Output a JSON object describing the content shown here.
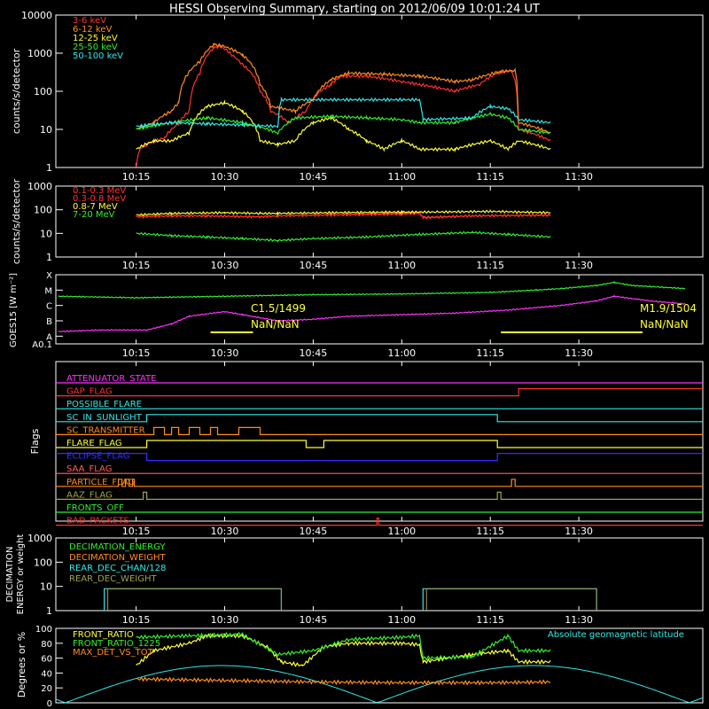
{
  "title": "HESSI Observing Summary, starting on 2012/06/09 10:01:24 UT",
  "time_ticks": [
    "10:15",
    "10:30",
    "10:45",
    "11:00",
    "11:15",
    "11:30"
  ],
  "colors": {
    "red": "#ff3030",
    "orange": "#ff8c1a",
    "yellow": "#ffff30",
    "green": "#30ee30",
    "cyan": "#30e8e8",
    "magenta": "#ff30ff",
    "blue": "#3030ff",
    "olive": "#a0a050",
    "pink": "#ff6060",
    "white": "#ffffff"
  },
  "chart_data": [
    {
      "type": "line",
      "ylabel": "counts/s/detector",
      "y_scale": "log",
      "ylim": [
        1,
        10000
      ],
      "yticks": [
        "1",
        "10",
        "100",
        "1000",
        "10000"
      ],
      "series": [
        {
          "name": "3-6 keV",
          "color": "red",
          "points": [
            [
              10.25,
              1
            ],
            [
              10.26,
              3
            ],
            [
              10.28,
              4
            ],
            [
              10.33,
              6
            ],
            [
              10.37,
              14
            ],
            [
              10.4,
              30
            ],
            [
              10.43,
              300
            ],
            [
              10.47,
              1400
            ],
            [
              10.49,
              1500
            ],
            [
              10.52,
              900
            ],
            [
              10.55,
              500
            ],
            [
              10.6,
              100
            ],
            [
              10.63,
              30
            ],
            [
              10.68,
              15
            ],
            [
              10.7,
              20
            ],
            [
              10.73,
              30
            ],
            [
              10.8,
              150
            ],
            [
              10.83,
              250
            ],
            [
              10.9,
              250
            ],
            [
              11.0,
              180
            ],
            [
              11.05,
              150
            ],
            [
              11.15,
              100
            ],
            [
              11.22,
              150
            ],
            [
              11.27,
              300
            ],
            [
              11.31,
              350
            ],
            [
              11.33,
              10
            ],
            [
              11.42,
              5
            ]
          ]
        },
        {
          "name": "6-12 keV",
          "color": "orange",
          "points": [
            [
              10.25,
              10
            ],
            [
              10.3,
              15
            ],
            [
              10.35,
              30
            ],
            [
              10.37,
              50
            ],
            [
              10.43,
              600
            ],
            [
              10.47,
              1700
            ],
            [
              10.5,
              1500
            ],
            [
              10.55,
              900
            ],
            [
              10.6,
              150
            ],
            [
              10.63,
              40
            ],
            [
              10.7,
              30
            ],
            [
              10.75,
              60
            ],
            [
              10.8,
              200
            ],
            [
              10.85,
              300
            ],
            [
              10.95,
              280
            ],
            [
              11.05,
              250
            ],
            [
              11.15,
              180
            ],
            [
              11.2,
              200
            ],
            [
              11.28,
              330
            ],
            [
              11.32,
              350
            ],
            [
              11.33,
              15
            ],
            [
              11.42,
              8
            ]
          ]
        },
        {
          "name": "12-25 keV",
          "color": "yellow",
          "points": [
            [
              10.25,
              3
            ],
            [
              10.3,
              5
            ],
            [
              10.35,
              5
            ],
            [
              10.4,
              8
            ],
            [
              10.45,
              40
            ],
            [
              10.5,
              50
            ],
            [
              10.55,
              30
            ],
            [
              10.6,
              5
            ],
            [
              10.65,
              4
            ],
            [
              10.7,
              5
            ],
            [
              10.75,
              15
            ],
            [
              10.8,
              20
            ],
            [
              10.85,
              10
            ],
            [
              10.9,
              5
            ],
            [
              10.95,
              3
            ],
            [
              11.0,
              5
            ],
            [
              11.05,
              3
            ],
            [
              11.15,
              3
            ],
            [
              11.25,
              5
            ],
            [
              11.3,
              3
            ],
            [
              11.33,
              5
            ],
            [
              11.42,
              3
            ]
          ]
        },
        {
          "name": "25-50 keV",
          "color": "green",
          "points": [
            [
              10.25,
              10
            ],
            [
              10.35,
              15
            ],
            [
              10.45,
              20
            ],
            [
              10.55,
              15
            ],
            [
              10.65,
              8
            ],
            [
              10.7,
              20
            ],
            [
              10.8,
              22
            ],
            [
              10.9,
              20
            ],
            [
              11.0,
              18
            ],
            [
              11.05,
              15
            ],
            [
              11.15,
              15
            ],
            [
              11.25,
              25
            ],
            [
              11.3,
              20
            ],
            [
              11.33,
              10
            ],
            [
              11.42,
              8
            ]
          ]
        },
        {
          "name": "50-100 keV",
          "color": "cyan",
          "points": [
            [
              10.25,
              12
            ],
            [
              10.35,
              15
            ],
            [
              10.45,
              14
            ],
            [
              10.55,
              13
            ],
            [
              10.65,
              12
            ],
            [
              10.66,
              60
            ],
            [
              11.05,
              60
            ],
            [
              11.06,
              18
            ],
            [
              11.2,
              20
            ],
            [
              11.25,
              40
            ],
            [
              11.3,
              35
            ],
            [
              11.33,
              18
            ],
            [
              11.42,
              15
            ]
          ]
        }
      ]
    },
    {
      "type": "line",
      "ylabel": "counts/s/detector",
      "y_scale": "log",
      "ylim": [
        1,
        1000
      ],
      "yticks": [
        "1",
        "10",
        "100",
        "1000"
      ],
      "series": [
        {
          "name": "0.1-0.3 MeV",
          "color": "red",
          "points": [
            [
              10.25,
              50
            ],
            [
              10.35,
              55
            ],
            [
              10.45,
              55
            ],
            [
              10.6,
              50
            ],
            [
              10.65,
              55
            ],
            [
              10.8,
              60
            ],
            [
              11.0,
              70
            ],
            [
              11.05,
              80
            ],
            [
              11.06,
              45
            ],
            [
              11.2,
              55
            ],
            [
              11.42,
              60
            ]
          ]
        },
        {
          "name": "0.3-0.8 MeV",
          "color": "red",
          "points": [
            [
              10.25,
              50
            ],
            [
              10.35,
              55
            ],
            [
              10.45,
              55
            ],
            [
              10.6,
              50
            ],
            [
              10.65,
              55
            ],
            [
              10.8,
              60
            ],
            [
              11.0,
              65
            ],
            [
              11.05,
              70
            ],
            [
              11.06,
              48
            ],
            [
              11.2,
              55
            ],
            [
              11.42,
              58
            ]
          ]
        },
        {
          "name": "0.8-7 MeV",
          "color": "yellow",
          "points": [
            [
              10.25,
              60
            ],
            [
              10.35,
              70
            ],
            [
              10.5,
              75
            ],
            [
              10.6,
              70
            ],
            [
              10.65,
              70
            ],
            [
              10.8,
              75
            ],
            [
              11.0,
              80
            ],
            [
              11.1,
              80
            ],
            [
              11.25,
              85
            ],
            [
              11.42,
              75
            ]
          ]
        },
        {
          "name": "7-20 MeV",
          "color": "green",
          "points": [
            [
              10.25,
              10
            ],
            [
              10.35,
              8
            ],
            [
              10.45,
              7
            ],
            [
              10.55,
              6
            ],
            [
              10.65,
              5
            ],
            [
              10.75,
              6
            ],
            [
              10.9,
              7
            ],
            [
              11.05,
              9
            ],
            [
              11.2,
              11
            ],
            [
              11.3,
              9
            ],
            [
              11.42,
              7
            ]
          ]
        }
      ]
    },
    {
      "type": "line",
      "ylabel": "GOES15 [W m⁻²]",
      "y_scale": "log",
      "yticks": [
        "A0.1",
        "A",
        "B",
        "C",
        "M",
        "X"
      ],
      "series": [
        {
          "color": "green",
          "points": [
            [
              10.03,
              4.6
            ],
            [
              10.25,
              4.5
            ],
            [
              10.5,
              4.6
            ],
            [
              10.75,
              4.7
            ],
            [
              11.0,
              4.75
            ],
            [
              11.25,
              4.85
            ],
            [
              11.38,
              5.0
            ],
            [
              11.45,
              5.1
            ],
            [
              11.55,
              5.3
            ],
            [
              11.6,
              5.5
            ],
            [
              11.65,
              5.3
            ],
            [
              11.8,
              5.1
            ]
          ]
        },
        {
          "color": "magenta",
          "points": [
            [
              10.03,
              2.3
            ],
            [
              10.15,
              2.4
            ],
            [
              10.28,
              2.4
            ],
            [
              10.35,
              2.8
            ],
            [
              10.4,
              3.3
            ],
            [
              10.5,
              3.6
            ],
            [
              10.55,
              3.4
            ],
            [
              10.65,
              3.0
            ],
            [
              10.75,
              3.1
            ],
            [
              10.85,
              3.3
            ],
            [
              11.0,
              3.4
            ],
            [
              11.15,
              3.5
            ],
            [
              11.3,
              3.7
            ],
            [
              11.45,
              4.0
            ],
            [
              11.55,
              4.3
            ],
            [
              11.6,
              4.6
            ],
            [
              11.7,
              4.3
            ],
            [
              11.8,
              4.1
            ]
          ]
        }
      ],
      "flares": [
        {
          "label": "C1.5/1499",
          "sub": "NaN/NaN",
          "start": 10.46,
          "end": 10.58
        },
        {
          "label": "M1.9/1504",
          "sub": "NaN/NaN",
          "start": 11.28,
          "end": 11.68
        }
      ]
    },
    {
      "type": "flags",
      "ylabel": "Flags",
      "flags": [
        {
          "name": "ATTENUATOR_STATE",
          "color": "magenta"
        },
        {
          "name": "GAP_FLAG",
          "color": "red"
        },
        {
          "name": "POSSIBLE_FLARE",
          "color": "cyan"
        },
        {
          "name": "SC_IN_SUNLIGHT",
          "color": "cyan"
        },
        {
          "name": "SC_TRANSMITTER",
          "color": "orange"
        },
        {
          "name": "FLARE_FLAG",
          "color": "yellow"
        },
        {
          "name": "ECLIPSE_FLAG",
          "color": "blue"
        },
        {
          "name": "SAA_FLAG",
          "color": "pink"
        },
        {
          "name": "PARTICLE_FLAG",
          "color": "orange"
        },
        {
          "name": "AAZ_FLAG",
          "color": "olive"
        },
        {
          "name": "FRONTS_OFF",
          "color": "green"
        },
        {
          "name": "BAD_PACKETS",
          "color": "red"
        }
      ]
    },
    {
      "type": "line",
      "ylabel": "DECIMATION ENERGY or weight",
      "y_scale": "log",
      "ylim": [
        1,
        1000
      ],
      "yticks": [
        "1",
        "10",
        "100",
        "1000"
      ],
      "series": [
        {
          "name": "DECIMATION_ENERGY",
          "color": "green"
        },
        {
          "name": "DECIMATION_WEIGHT",
          "color": "orange"
        },
        {
          "name": "REAR_DEC_CHAN/128",
          "color": "cyan"
        },
        {
          "name": "REAR_DEC_WEIGHT",
          "color": "olive"
        }
      ]
    },
    {
      "type": "line",
      "ylabel": "Degrees or %",
      "ylim": [
        0,
        100
      ],
      "yticks": [
        "0",
        "20",
        "40",
        "60",
        "80",
        "100"
      ],
      "series": [
        {
          "name": "FRONT_RATIO",
          "color": "yellow",
          "points": [
            [
              10.25,
              50
            ],
            [
              10.3,
              70
            ],
            [
              10.4,
              80
            ],
            [
              10.45,
              90
            ],
            [
              10.55,
              90
            ],
            [
              10.62,
              75
            ],
            [
              10.66,
              55
            ],
            [
              10.72,
              50
            ],
            [
              10.78,
              75
            ],
            [
              10.85,
              80
            ],
            [
              11.0,
              80
            ],
            [
              11.05,
              78
            ],
            [
              11.06,
              55
            ],
            [
              11.2,
              65
            ],
            [
              11.3,
              70
            ],
            [
              11.33,
              55
            ],
            [
              11.42,
              55
            ]
          ]
        },
        {
          "name": "FRONT_RATIO_1225",
          "color": "green",
          "points": [
            [
              10.25,
              88
            ],
            [
              10.4,
              90
            ],
            [
              10.55,
              92
            ],
            [
              10.65,
              65
            ],
            [
              10.75,
              70
            ],
            [
              10.85,
              85
            ],
            [
              11.0,
              88
            ],
            [
              11.05,
              90
            ],
            [
              11.06,
              60
            ],
            [
              11.2,
              62
            ],
            [
              11.3,
              90
            ],
            [
              11.33,
              70
            ],
            [
              11.42,
              70
            ]
          ]
        },
        {
          "name": "MAX_DET_VS_TOT",
          "color": "orange",
          "points": [
            [
              10.25,
              32
            ],
            [
              10.5,
              30
            ],
            [
              10.75,
              28
            ],
            [
              11.0,
              27
            ],
            [
              11.25,
              27
            ],
            [
              11.42,
              28
            ]
          ]
        }
      ],
      "annotation": "Absolute geomagnetic latitude"
    }
  ]
}
